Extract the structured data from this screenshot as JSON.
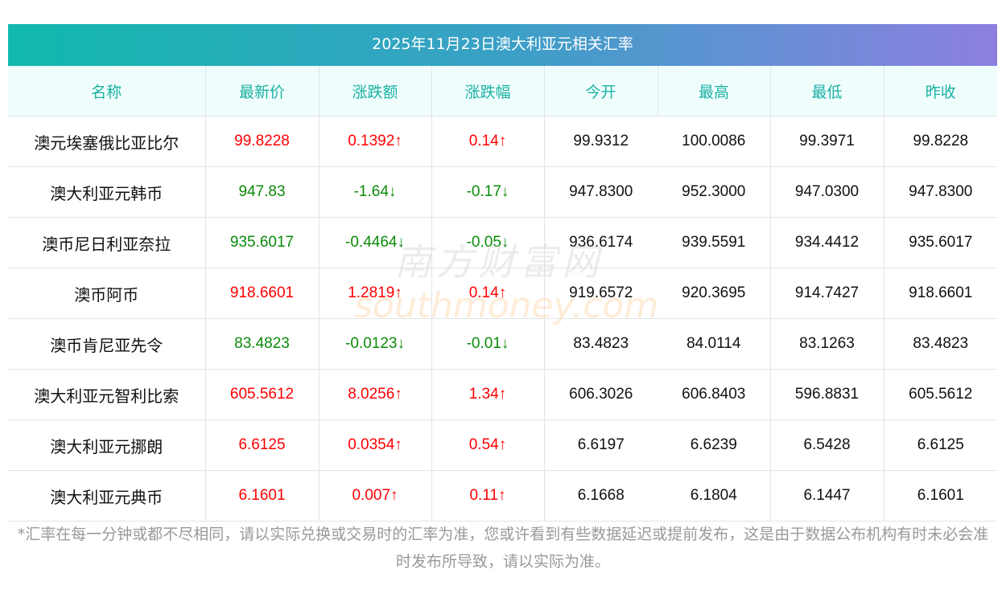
{
  "title": "2025年11月23日澳大利亚元相关汇率",
  "headers": [
    "名称",
    "最新价",
    "涨跌额",
    "涨跌幅",
    "今开",
    "最高",
    "最低",
    "昨收"
  ],
  "rows": [
    {
      "name": "澳元埃塞俄比亚比尔",
      "latest": "99.8228",
      "change": "0.1392↑",
      "pct": "0.14↑",
      "open": "99.9312",
      "high": "100.0086",
      "low": "99.3971",
      "prev": "99.8228",
      "dir": "up"
    },
    {
      "name": "澳大利亚元韩币",
      "latest": "947.83",
      "change": "-1.64↓",
      "pct": "-0.17↓",
      "open": "947.8300",
      "high": "952.3000",
      "low": "947.0300",
      "prev": "947.8300",
      "dir": "down"
    },
    {
      "name": "澳币尼日利亚奈拉",
      "latest": "935.6017",
      "change": "-0.4464↓",
      "pct": "-0.05↓",
      "open": "936.6174",
      "high": "939.5591",
      "low": "934.4412",
      "prev": "935.6017",
      "dir": "down"
    },
    {
      "name": "澳币阿币",
      "latest": "918.6601",
      "change": "1.2819↑",
      "pct": "0.14↑",
      "open": "919.6572",
      "high": "920.3695",
      "low": "914.7427",
      "prev": "918.6601",
      "dir": "up"
    },
    {
      "name": "澳币肯尼亚先令",
      "latest": "83.4823",
      "change": "-0.0123↓",
      "pct": "-0.01↓",
      "open": "83.4823",
      "high": "84.0114",
      "low": "83.1263",
      "prev": "83.4823",
      "dir": "down"
    },
    {
      "name": "澳大利亚元智利比索",
      "latest": "605.5612",
      "change": "8.0256↑",
      "pct": "1.34↑",
      "open": "606.3026",
      "high": "606.8403",
      "low": "596.8831",
      "prev": "605.5612",
      "dir": "up"
    },
    {
      "name": "澳大利亚元挪朗",
      "latest": "6.6125",
      "change": "0.0354↑",
      "pct": "0.54↑",
      "open": "6.6197",
      "high": "6.6239",
      "low": "6.5428",
      "prev": "6.6125",
      "dir": "up"
    },
    {
      "name": "澳大利亚元典币",
      "latest": "6.1601",
      "change": "0.007↑",
      "pct": "0.11↑",
      "open": "6.1668",
      "high": "6.1804",
      "low": "6.1447",
      "prev": "6.1601",
      "dir": "up"
    }
  ],
  "watermark": {
    "cn": "南方财富网",
    "en": "southmoney.com"
  },
  "note": "*汇率在每一分钟或都不尽相同，请以实际兑换或交易时的汇率为准，您或许看到有些数据延迟或提前发布，这是由于数据公布机构有时未必会准时发布所导致，请以实际为准。"
}
